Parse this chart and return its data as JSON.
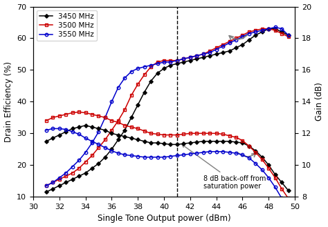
{
  "xlabel": "Single Tone Output power (dBm)",
  "ylabel_left": "Drain Efficiency (%)",
  "ylabel_right": "Gain (dB)",
  "xlim": [
    30,
    50
  ],
  "ylim_left": [
    10,
    70
  ],
  "ylim_right": [
    8,
    20
  ],
  "xticks": [
    30,
    32,
    34,
    36,
    38,
    40,
    42,
    44,
    46,
    48,
    50
  ],
  "yticks_left": [
    10,
    20,
    30,
    40,
    50,
    60,
    70
  ],
  "yticks_right": [
    8,
    10,
    12,
    14,
    16,
    18,
    20
  ],
  "vline_x": 41,
  "colors": {
    "3450": "#000000",
    "3500": "#cc0000",
    "3550": "#0000cc"
  },
  "x_data": [
    31,
    31.5,
    32,
    32.5,
    33,
    33.5,
    34,
    34.5,
    35,
    35.5,
    36,
    36.5,
    37,
    37.5,
    38,
    38.5,
    39,
    39.5,
    40,
    40.5,
    41,
    41.5,
    42,
    42.5,
    43,
    43.5,
    44,
    44.5,
    45,
    45.5,
    46,
    46.5,
    47,
    47.5,
    48,
    48.5,
    49,
    49.5
  ],
  "eff_3450": [
    11.5,
    12.5,
    13.5,
    14.5,
    15.5,
    16.5,
    17.5,
    19,
    20.5,
    22.5,
    25,
    28,
    31,
    35,
    39,
    43,
    46.5,
    49,
    50.5,
    51.5,
    52,
    52.5,
    53,
    53.5,
    54,
    54.5,
    55,
    55.5,
    56,
    57,
    58,
    59.5,
    61,
    62,
    63,
    63,
    62,
    61
  ],
  "eff_3500": [
    13.5,
    14.5,
    15.5,
    16.5,
    17.5,
    19,
    21,
    23,
    25.5,
    28,
    31,
    34,
    37.5,
    42,
    45.5,
    48.5,
    51,
    52.5,
    53,
    53,
    53,
    53.5,
    54,
    54.5,
    55,
    56,
    57,
    58,
    59,
    60,
    61,
    62,
    62.5,
    63,
    63,
    62.5,
    61.5,
    60.5
  ],
  "eff_3550": [
    13.5,
    14.5,
    16,
    17.5,
    19.5,
    21.5,
    24,
    27,
    30.5,
    35,
    40,
    44.5,
    47.5,
    49.5,
    50.5,
    51,
    51.5,
    52,
    52.5,
    52.5,
    53,
    53.5,
    54,
    54.5,
    55,
    55.5,
    56.5,
    57.5,
    58.5,
    59.5,
    60.5,
    61.5,
    62,
    62.5,
    63,
    63.5,
    63,
    61
  ],
  "gain_3450": [
    11.5,
    11.7,
    11.9,
    12.1,
    12.3,
    12.4,
    12.5,
    12.4,
    12.3,
    12.2,
    12.0,
    11.9,
    11.8,
    11.7,
    11.6,
    11.5,
    11.4,
    11.4,
    11.35,
    11.3,
    11.3,
    11.35,
    11.4,
    11.45,
    11.5,
    11.5,
    11.5,
    11.5,
    11.5,
    11.45,
    11.4,
    11.2,
    10.9,
    10.5,
    10.0,
    9.4,
    8.9,
    8.4
  ],
  "gain_3500": [
    12.8,
    13.0,
    13.1,
    13.2,
    13.3,
    13.35,
    13.3,
    13.2,
    13.1,
    13.0,
    12.8,
    12.7,
    12.5,
    12.4,
    12.3,
    12.15,
    12.0,
    11.95,
    11.9,
    11.9,
    11.9,
    11.95,
    12.0,
    12.0,
    12.0,
    12.0,
    12.0,
    11.95,
    11.85,
    11.75,
    11.55,
    11.2,
    10.8,
    10.35,
    9.8,
    9.2,
    8.5,
    7.9
  ],
  "gain_3550": [
    12.2,
    12.3,
    12.3,
    12.25,
    12.1,
    11.95,
    11.7,
    11.5,
    11.3,
    11.1,
    10.9,
    10.75,
    10.65,
    10.6,
    10.55,
    10.5,
    10.5,
    10.5,
    10.5,
    10.55,
    10.6,
    10.65,
    10.7,
    10.75,
    10.8,
    10.85,
    10.85,
    10.85,
    10.8,
    10.75,
    10.65,
    10.45,
    10.1,
    9.7,
    9.2,
    8.6,
    7.9,
    7.3
  ]
}
